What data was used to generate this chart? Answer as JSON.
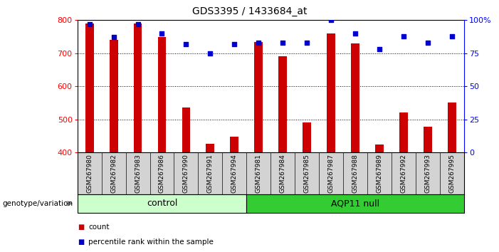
{
  "title": "GDS3395 / 1433684_at",
  "categories": [
    "GSM267980",
    "GSM267982",
    "GSM267983",
    "GSM267986",
    "GSM267990",
    "GSM267991",
    "GSM267994",
    "GSM267981",
    "GSM267984",
    "GSM267985",
    "GSM267987",
    "GSM267988",
    "GSM267989",
    "GSM267992",
    "GSM267993",
    "GSM267995"
  ],
  "bar_values": [
    790,
    740,
    790,
    750,
    535,
    427,
    448,
    735,
    690,
    490,
    760,
    730,
    425,
    520,
    477,
    550
  ],
  "percentile_values": [
    97,
    87,
    97,
    90,
    82,
    75,
    82,
    83,
    83,
    83,
    100,
    90,
    78,
    88,
    83,
    88
  ],
  "group_labels": [
    "control",
    "AQP11 null"
  ],
  "group_colors": [
    "#CCFFCC",
    "#33CC33"
  ],
  "bar_color": "#CC0000",
  "dot_color": "#0000CC",
  "ylim_left": [
    400,
    800
  ],
  "ylim_right": [
    0,
    100
  ],
  "yticks_left": [
    400,
    500,
    600,
    700,
    800
  ],
  "yticks_right": [
    0,
    25,
    50,
    75,
    100
  ],
  "ylabel_right_ticks": [
    "0",
    "25",
    "50",
    "75",
    "100%"
  ],
  "genotype_label": "genotype/variation",
  "legend_count_label": "count",
  "legend_pct_label": "percentile rank within the sample",
  "n_control": 7,
  "n_aqp11": 9
}
